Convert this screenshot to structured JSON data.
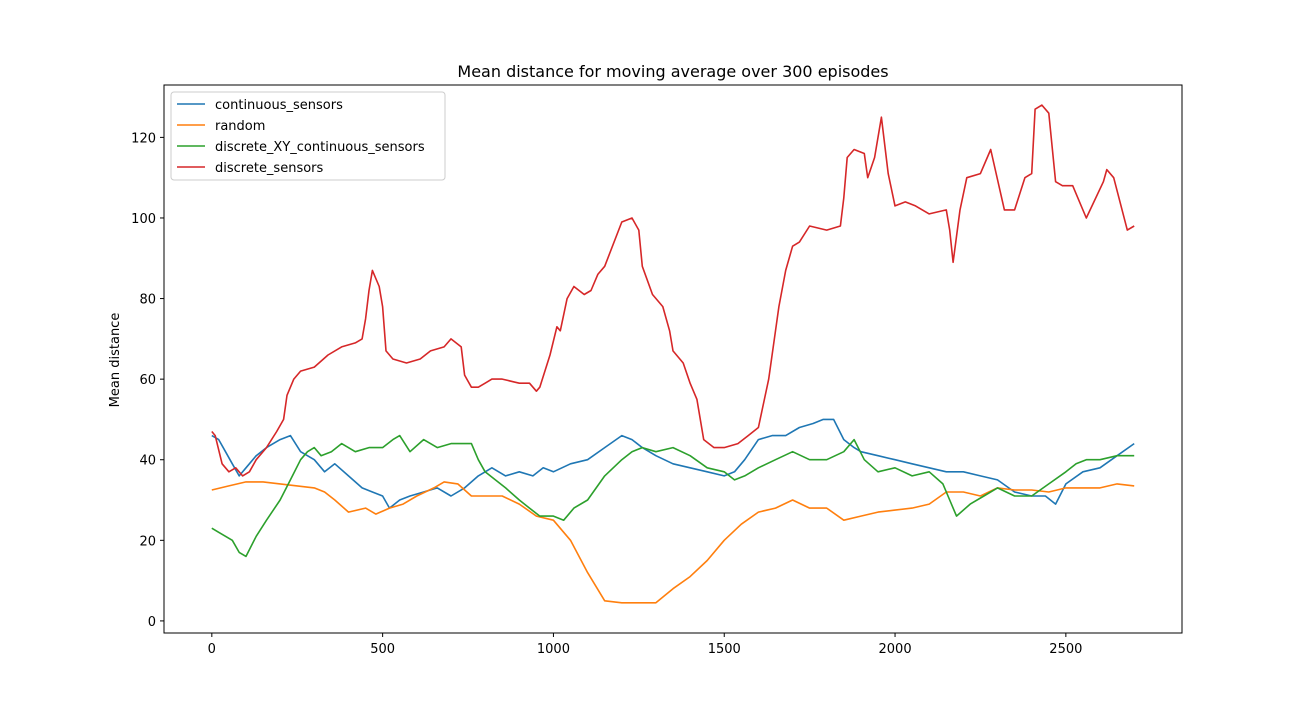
{
  "chart_data": {
    "type": "line",
    "title": "Mean distance for moving average over 300 episodes",
    "xlabel": "",
    "ylabel": "Mean distance",
    "xlim": [
      -140,
      2840
    ],
    "ylim": [
      -3,
      133
    ],
    "xticks": [
      0,
      500,
      1000,
      1500,
      2000,
      2500
    ],
    "yticks": [
      0,
      20,
      40,
      60,
      80,
      100,
      120
    ],
    "grid": false,
    "legend_position": "top-left",
    "series": [
      {
        "name": "continuous_sensors",
        "color": "#1f77b4",
        "x": [
          0,
          20,
          40,
          60,
          80,
          100,
          130,
          160,
          200,
          230,
          260,
          300,
          330,
          360,
          400,
          440,
          470,
          500,
          520,
          550,
          580,
          620,
          660,
          700,
          740,
          780,
          820,
          860,
          900,
          940,
          970,
          1000,
          1050,
          1100,
          1150,
          1200,
          1230,
          1260,
          1300,
          1350,
          1400,
          1450,
          1500,
          1530,
          1560,
          1600,
          1640,
          1680,
          1720,
          1760,
          1790,
          1820,
          1850,
          1880,
          1900,
          1950,
          2000,
          2050,
          2100,
          2150,
          2200,
          2250,
          2300,
          2350,
          2400,
          2440,
          2470,
          2500,
          2550,
          2600,
          2650,
          2700
        ],
        "y": [
          46,
          45,
          42,
          39,
          36,
          38,
          41,
          43,
          45,
          46,
          42,
          40,
          37,
          39,
          36,
          33,
          32,
          31,
          28,
          30,
          31,
          32,
          33,
          31,
          33,
          36,
          38,
          36,
          37,
          36,
          38,
          37,
          39,
          40,
          43,
          46,
          45,
          43,
          41,
          39,
          38,
          37,
          36,
          37,
          40,
          45,
          46,
          46,
          48,
          49,
          50,
          50,
          45,
          43,
          42,
          41,
          40,
          39,
          38,
          37,
          37,
          36,
          35,
          32,
          31,
          31,
          29,
          34,
          37,
          38,
          41,
          44
        ]
      },
      {
        "name": "random",
        "color": "#ff7f0e",
        "x": [
          0,
          50,
          100,
          150,
          200,
          250,
          300,
          330,
          360,
          400,
          450,
          480,
          520,
          560,
          600,
          650,
          680,
          720,
          760,
          800,
          850,
          900,
          950,
          1000,
          1050,
          1100,
          1150,
          1200,
          1250,
          1300,
          1350,
          1400,
          1450,
          1500,
          1550,
          1600,
          1650,
          1700,
          1750,
          1800,
          1850,
          1900,
          1950,
          2000,
          2050,
          2100,
          2150,
          2200,
          2250,
          2300,
          2350,
          2400,
          2450,
          2500,
          2550,
          2600,
          2650,
          2700
        ],
        "y": [
          32.5,
          33.5,
          34.5,
          34.5,
          34,
          33.5,
          33,
          32,
          30,
          27,
          28,
          26.5,
          28,
          29,
          31,
          33,
          34.5,
          34,
          31,
          31,
          31,
          29,
          26,
          25,
          20,
          12,
          5,
          4.5,
          4.5,
          4.5,
          8,
          11,
          15,
          20,
          24,
          27,
          28,
          30,
          28,
          28,
          25,
          26,
          27,
          27.5,
          28,
          29,
          32,
          32,
          31,
          33,
          32.5,
          32.5,
          32,
          33,
          33,
          33,
          34,
          33.5
        ]
      },
      {
        "name": "discrete_XY_continuous_sensors",
        "color": "#2ca02c",
        "x": [
          0,
          20,
          40,
          60,
          80,
          100,
          130,
          160,
          200,
          230,
          260,
          280,
          300,
          320,
          350,
          380,
          420,
          460,
          500,
          530,
          550,
          580,
          620,
          660,
          700,
          740,
          760,
          780,
          800,
          830,
          860,
          900,
          930,
          960,
          1000,
          1030,
          1060,
          1100,
          1150,
          1200,
          1230,
          1260,
          1300,
          1350,
          1400,
          1450,
          1500,
          1530,
          1560,
          1600,
          1650,
          1700,
          1750,
          1800,
          1850,
          1880,
          1910,
          1950,
          2000,
          2050,
          2100,
          2140,
          2160,
          2180,
          2220,
          2260,
          2300,
          2350,
          2400,
          2450,
          2500,
          2530,
          2560,
          2600,
          2650,
          2700
        ],
        "y": [
          23,
          22,
          21,
          20,
          17,
          16,
          21,
          25,
          30,
          35,
          40,
          42,
          43,
          41,
          42,
          44,
          42,
          43,
          43,
          45,
          46,
          42,
          45,
          43,
          44,
          44,
          44,
          40,
          37,
          35,
          33,
          30,
          28,
          26,
          26,
          25,
          28,
          30,
          36,
          40,
          42,
          43,
          42,
          43,
          41,
          38,
          37,
          35,
          36,
          38,
          40,
          42,
          40,
          40,
          42,
          45,
          40,
          37,
          38,
          36,
          37,
          34,
          30,
          26,
          29,
          31,
          33,
          31,
          31,
          34,
          37,
          39,
          40,
          40,
          41,
          41
        ]
      },
      {
        "name": "discrete_sensors",
        "color": "#d62728",
        "x": [
          0,
          10,
          30,
          50,
          70,
          90,
          110,
          130,
          160,
          190,
          210,
          220,
          240,
          260,
          300,
          340,
          380,
          420,
          440,
          450,
          460,
          470,
          490,
          500,
          510,
          530,
          570,
          610,
          640,
          680,
          700,
          730,
          740,
          760,
          780,
          800,
          820,
          850,
          900,
          930,
          950,
          960,
          990,
          1010,
          1020,
          1040,
          1060,
          1090,
          1110,
          1130,
          1150,
          1200,
          1230,
          1250,
          1260,
          1290,
          1320,
          1340,
          1350,
          1380,
          1400,
          1420,
          1440,
          1470,
          1500,
          1540,
          1570,
          1600,
          1630,
          1650,
          1660,
          1680,
          1700,
          1720,
          1750,
          1800,
          1840,
          1850,
          1860,
          1880,
          1910,
          1920,
          1940,
          1960,
          1980,
          2000,
          2030,
          2060,
          2100,
          2150,
          2160,
          2170,
          2190,
          2210,
          2250,
          2280,
          2320,
          2350,
          2380,
          2400,
          2410,
          2430,
          2450,
          2470,
          2490,
          2520,
          2560,
          2610,
          2620,
          2640,
          2680,
          2700
        ],
        "y": [
          47,
          46,
          39,
          37,
          38,
          36,
          37,
          40,
          43,
          47,
          50,
          56,
          60,
          62,
          63,
          66,
          68,
          69,
          70,
          75,
          82,
          87,
          83,
          78,
          67,
          65,
          64,
          65,
          67,
          68,
          70,
          68,
          61,
          58,
          58,
          59,
          60,
          60,
          59,
          59,
          57,
          58,
          66,
          73,
          72,
          80,
          83,
          81,
          82,
          86,
          88,
          99,
          100,
          97,
          88,
          81,
          78,
          72,
          67,
          64,
          59,
          55,
          45,
          43,
          43,
          44,
          46,
          48,
          60,
          72,
          78,
          87,
          93,
          94,
          98,
          97,
          98,
          105,
          115,
          117,
          116,
          110,
          115,
          125,
          111,
          103,
          104,
          103,
          101,
          102,
          97,
          89,
          102,
          110,
          111,
          117,
          102,
          102,
          110,
          111,
          127,
          128,
          126,
          109,
          108,
          108,
          100,
          109,
          112,
          110,
          97,
          98
        ]
      }
    ]
  }
}
